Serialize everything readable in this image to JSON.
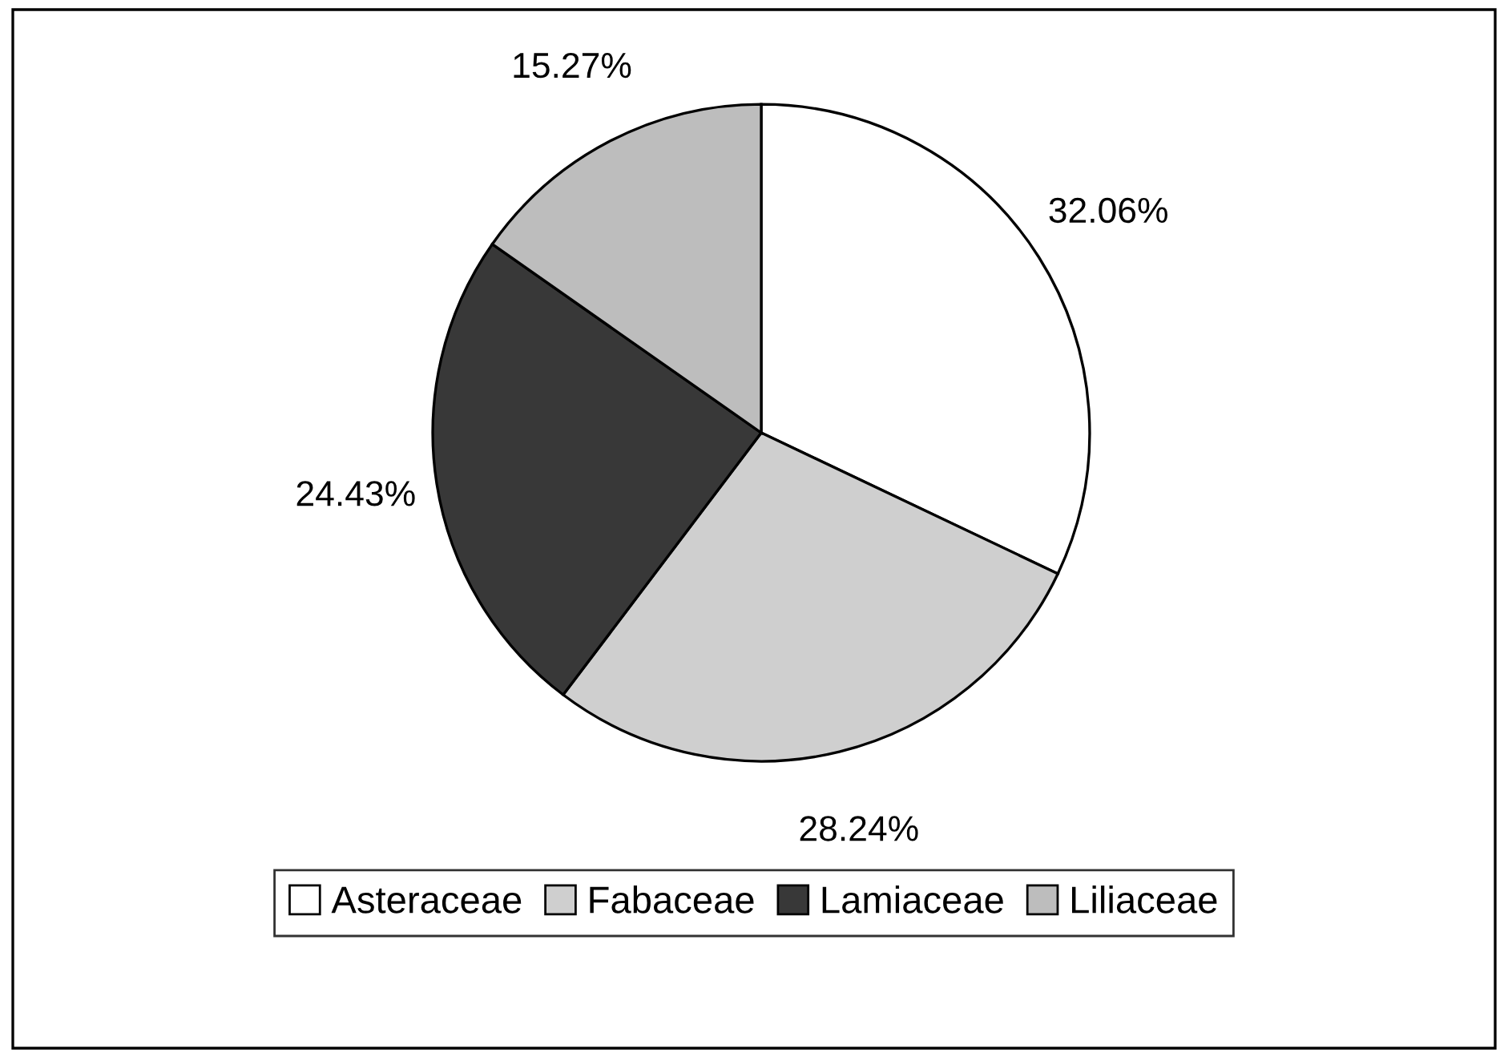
{
  "chart_data": {
    "type": "pie",
    "categories": [
      "Asteraceae",
      "Fabaceae",
      "Lamiaceae",
      "Liliaceae"
    ],
    "values": [
      32.06,
      28.24,
      24.43,
      15.27
    ],
    "value_labels": [
      "32.06%",
      "28.24%",
      "24.43%",
      "15.27%"
    ],
    "colors": [
      "#ffffff",
      "#cfcfcf",
      "#383838",
      "#bdbdbd"
    ],
    "legend": "bottom"
  }
}
